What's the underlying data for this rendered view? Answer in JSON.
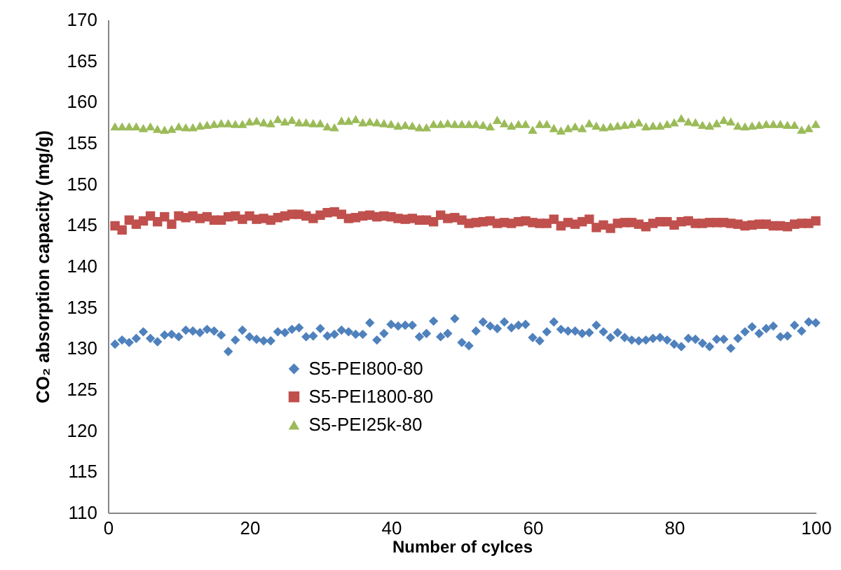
{
  "chart_data": {
    "type": "scatter",
    "xlabel": "Number of cylces",
    "ylabel": "CO₂ absorption capacity (mg/g)",
    "xlim": [
      0,
      100
    ],
    "xticks": [
      0,
      20,
      40,
      60,
      80,
      100
    ],
    "ylim": [
      110,
      170
    ],
    "yticks": [
      110,
      115,
      120,
      125,
      130,
      135,
      140,
      145,
      150,
      155,
      160,
      165,
      170
    ],
    "grid": false,
    "legend": "bottom",
    "x": [
      1,
      2,
      3,
      4,
      5,
      6,
      7,
      8,
      9,
      10,
      11,
      12,
      13,
      14,
      15,
      16,
      17,
      18,
      19,
      20,
      21,
      22,
      23,
      24,
      25,
      26,
      27,
      28,
      29,
      30,
      31,
      32,
      33,
      34,
      35,
      36,
      37,
      38,
      39,
      40,
      41,
      42,
      43,
      44,
      45,
      46,
      47,
      48,
      49,
      50,
      51,
      52,
      53,
      54,
      55,
      56,
      57,
      58,
      59,
      60,
      61,
      62,
      63,
      64,
      65,
      66,
      67,
      68,
      69,
      70,
      71,
      72,
      73,
      74,
      75,
      76,
      77,
      78,
      79,
      80,
      81,
      82,
      83,
      84,
      85,
      86,
      87,
      88,
      89,
      90,
      91,
      92,
      93,
      94,
      95,
      96,
      97,
      98,
      99,
      100
    ],
    "series": [
      {
        "name": "S5-PEI800-80",
        "color": "#4f81bd",
        "marker": "diamond",
        "values": [
          130.5,
          131,
          130.7,
          131.2,
          132,
          131.2,
          130.8,
          131.6,
          131.7,
          131.4,
          132.2,
          132.1,
          131.9,
          132.3,
          132.1,
          131.6,
          129.6,
          131,
          132.2,
          131.4,
          131.1,
          130.9,
          130.9,
          132,
          131.9,
          132.3,
          132.5,
          131.4,
          131.5,
          132.4,
          131.5,
          131.7,
          132.2,
          132,
          131.7,
          131.7,
          133.1,
          131,
          131.8,
          132.9,
          132.7,
          132.8,
          132.8,
          131.4,
          131.8,
          133.3,
          131.4,
          131.8,
          133.6,
          130.7,
          130.3,
          132.1,
          133.2,
          132.7,
          132.4,
          133.2,
          132.5,
          132.8,
          132.9,
          131.3,
          130.9,
          132,
          133.2,
          132.3,
          132.1,
          132.1,
          131.8,
          131.9,
          132.8,
          132,
          131.3,
          131.9,
          131.3,
          131,
          130.9,
          131,
          131.2,
          131.3,
          131,
          130.5,
          130.2,
          131.2,
          131.1,
          130.6,
          130.2,
          131.1,
          131.1,
          130,
          131.2,
          132,
          132.6,
          131.8,
          132.4,
          132.7,
          131.4,
          131.5,
          132.8,
          132.1,
          133.2,
          133.1
        ]
      },
      {
        "name": "S5-PEI1800-80",
        "color": "#c0504d",
        "marker": "square",
        "values": [
          144.9,
          144.4,
          145.6,
          145.1,
          145.5,
          146.1,
          145.4,
          146,
          145.1,
          146.1,
          145.9,
          146.1,
          145.8,
          146,
          145.6,
          145.6,
          146,
          146.1,
          145.7,
          146.1,
          145.7,
          145.8,
          145.6,
          145.9,
          146.1,
          146.3,
          146.3,
          146.1,
          145.8,
          146.2,
          146.5,
          146.6,
          146.3,
          145.8,
          145.9,
          146.1,
          146.2,
          146,
          146.1,
          146,
          145.8,
          145.7,
          145.8,
          145.6,
          145.6,
          145.4,
          146.2,
          145.8,
          145.9,
          145.6,
          145.2,
          145.3,
          145.4,
          145.5,
          145.2,
          145.3,
          145.2,
          145.4,
          145.5,
          145.3,
          145.2,
          145.2,
          145.7,
          144.9,
          145.3,
          145.1,
          145.4,
          145.7,
          144.7,
          145,
          144.6,
          145.2,
          145.3,
          145.3,
          145.1,
          144.8,
          145.2,
          145.4,
          145.4,
          145,
          145.4,
          145.5,
          145.2,
          145.2,
          145.3,
          145.3,
          145.3,
          145.2,
          145.1,
          144.9,
          145,
          145.1,
          145.1,
          144.9,
          144.9,
          144.8,
          145.1,
          145.2,
          145.2,
          145.5
        ]
      },
      {
        "name": "S5-PEI25k-80",
        "color": "#9bbb59",
        "marker": "triangle",
        "values": [
          157,
          157,
          157,
          157,
          156.8,
          157,
          156.7,
          156.6,
          156.7,
          157,
          156.9,
          156.9,
          157.1,
          157.2,
          157.3,
          157.4,
          157.4,
          157.3,
          157.3,
          157.6,
          157.7,
          157.5,
          157.4,
          157.9,
          157.6,
          157.8,
          157.5,
          157.5,
          157.4,
          157.4,
          157,
          156.9,
          157.7,
          157.7,
          157.9,
          157.5,
          157.6,
          157.5,
          157.4,
          157.3,
          157.1,
          157.2,
          157.1,
          156.9,
          156.9,
          157.3,
          157.3,
          157.4,
          157.3,
          157.3,
          157.3,
          157.3,
          157.2,
          157,
          157.8,
          157.4,
          157.1,
          157.3,
          157.3,
          156.6,
          157.3,
          157.3,
          156.8,
          156.5,
          156.8,
          157,
          156.8,
          157.4,
          157.1,
          156.9,
          157,
          157.1,
          157.2,
          157.3,
          157.5,
          157,
          157.1,
          157.1,
          157.3,
          157.5,
          158,
          157.6,
          157.5,
          157.2,
          157.1,
          157.4,
          157.8,
          157.6,
          157.1,
          157,
          157.1,
          157.2,
          157.3,
          157.3,
          157.3,
          157.2,
          157.2,
          156.6,
          156.8,
          157.3
        ]
      }
    ]
  }
}
